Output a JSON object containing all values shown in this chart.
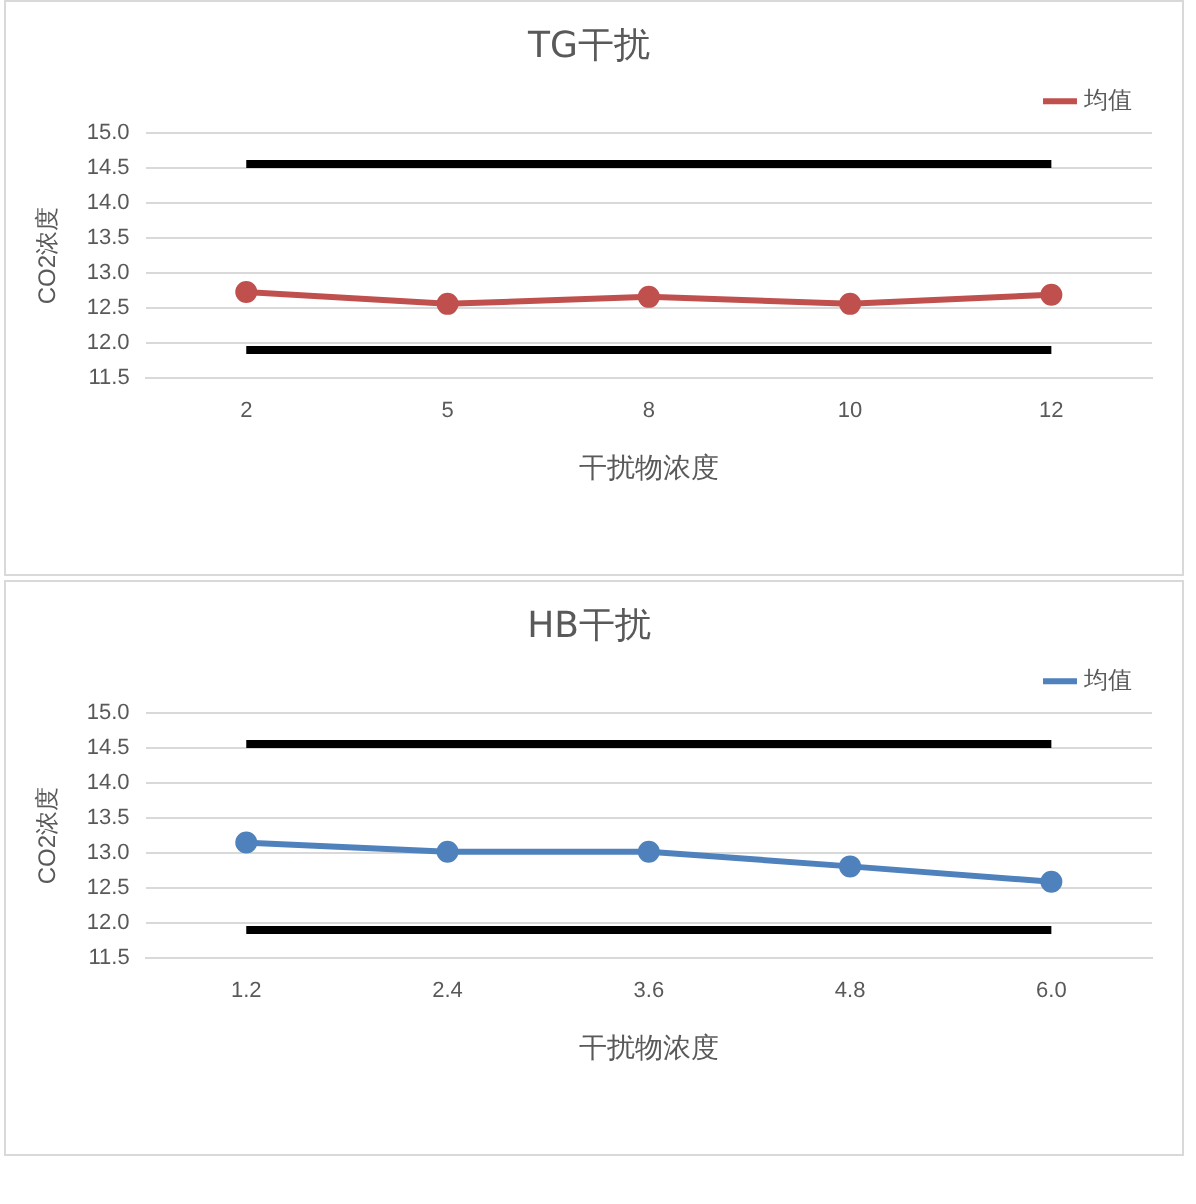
{
  "chart_data": [
    {
      "type": "line",
      "title": "TG干扰",
      "xlabel": "干扰物浓度",
      "ylabel": "CO2浓度",
      "categories": [
        "2",
        "5",
        "8",
        "10",
        "12"
      ],
      "ylim": [
        11.5,
        15.0
      ],
      "yticks": [
        {
          "value": 11.5,
          "label": "11.5"
        },
        {
          "value": 12,
          "label": "12.0"
        },
        {
          "value": 12.5,
          "label": "12.5"
        },
        {
          "value": 13,
          "label": "13.0"
        },
        {
          "value": 13.5,
          "label": "13.5"
        },
        {
          "value": 14,
          "label": "14.0"
        },
        {
          "value": 14.5,
          "label": "14.5"
        },
        {
          "value": 15,
          "label": "15.0"
        }
      ],
      "grid": "y",
      "legend": "top right",
      "series": [
        {
          "name": "均值",
          "color": "#c0504d",
          "marker": "circle",
          "values": [
            12.73,
            12.56,
            12.66,
            12.56,
            12.69
          ]
        },
        {
          "color": "#000000",
          "marker": "none",
          "values": [
            14.56,
            14.56,
            14.56,
            14.56,
            14.56
          ]
        },
        {
          "color": "#000000",
          "marker": "none",
          "values": [
            11.9,
            11.9,
            11.9,
            11.9,
            11.9
          ]
        }
      ]
    },
    {
      "type": "line",
      "title": "HB干扰",
      "xlabel": "干扰物浓度",
      "ylabel": "CO2浓度",
      "categories": [
        "1.2",
        "2.4",
        "3.6",
        "4.8",
        "6.0"
      ],
      "ylim": [
        11.5,
        15.0
      ],
      "yticks": [
        {
          "value": 11.5,
          "label": "11.5"
        },
        {
          "value": 12,
          "label": "12.0"
        },
        {
          "value": 12.5,
          "label": "12.5"
        },
        {
          "value": 13,
          "label": "13.0"
        },
        {
          "value": 13.5,
          "label": "13.5"
        },
        {
          "value": 14,
          "label": "14.0"
        },
        {
          "value": 14.5,
          "label": "14.5"
        },
        {
          "value": 15,
          "label": "15.0"
        }
      ],
      "grid": "y",
      "legend": "top right",
      "series": [
        {
          "name": "均值",
          "color": "#4f81bd",
          "marker": "circle",
          "values": [
            13.15,
            13.02,
            13.02,
            12.81,
            12.59
          ]
        },
        {
          "color": "#000000",
          "marker": "none",
          "values": [
            14.56,
            14.56,
            14.56,
            14.56,
            14.56
          ]
        },
        {
          "color": "#000000",
          "marker": "none",
          "values": [
            11.9,
            11.9,
            11.9,
            11.9,
            11.9
          ]
        }
      ]
    }
  ]
}
